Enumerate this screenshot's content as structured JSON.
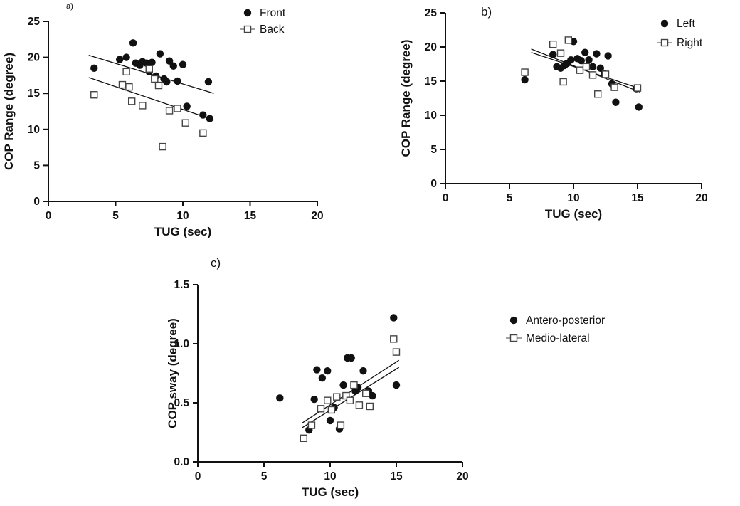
{
  "figure": {
    "background": "#ffffff",
    "ink": "#111111",
    "open_marker_fill": "#ffffff",
    "open_marker_stroke": "#444444"
  },
  "chart_data": [
    {
      "id": "a",
      "panel_label": "a)",
      "type": "scatter",
      "xlabel": "TUG (sec)",
      "ylabel": "COP Range (degree)",
      "xlim": [
        0,
        20
      ],
      "ylim": [
        0,
        25
      ],
      "xtick_values": [
        0,
        5,
        10,
        15,
        20
      ],
      "xtick_labels": [
        "0",
        "5",
        "10",
        "15",
        "20"
      ],
      "ytick_values": [
        0,
        5,
        10,
        15,
        20,
        25
      ],
      "ytick_labels": [
        "0",
        "5",
        "10",
        "15",
        "20",
        "25"
      ],
      "grid": false,
      "legend_position": "top-right",
      "series": [
        {
          "name": "Front",
          "marker": "filled-circle",
          "points": [
            [
              3.4,
              18.5
            ],
            [
              5.3,
              19.7
            ],
            [
              5.8,
              20.0
            ],
            [
              6.3,
              22.0
            ],
            [
              6.5,
              19.2
            ],
            [
              6.8,
              18.9
            ],
            [
              7.0,
              19.4
            ],
            [
              7.3,
              19.2
            ],
            [
              7.5,
              18.0
            ],
            [
              7.7,
              19.3
            ],
            [
              8.0,
              17.4
            ],
            [
              8.3,
              20.5
            ],
            [
              8.6,
              17.0
            ],
            [
              8.8,
              16.6
            ],
            [
              9.0,
              19.5
            ],
            [
              9.3,
              18.8
            ],
            [
              9.6,
              16.7
            ],
            [
              10.0,
              19.0
            ],
            [
              10.3,
              13.2
            ],
            [
              11.5,
              12.0
            ],
            [
              11.9,
              16.6
            ],
            [
              12.0,
              11.5
            ]
          ],
          "trend": {
            "x1": 3.0,
            "y1": 20.3,
            "x2": 12.3,
            "y2": 15.0
          }
        },
        {
          "name": "Back",
          "marker": "open-square",
          "points": [
            [
              3.4,
              14.8
            ],
            [
              5.5,
              16.2
            ],
            [
              5.8,
              18.0
            ],
            [
              6.0,
              15.9
            ],
            [
              6.2,
              13.9
            ],
            [
              7.0,
              13.3
            ],
            [
              7.5,
              18.4
            ],
            [
              7.9,
              17.0
            ],
            [
              8.2,
              16.1
            ],
            [
              8.5,
              7.6
            ],
            [
              9.0,
              12.6
            ],
            [
              9.6,
              12.9
            ],
            [
              10.2,
              10.9
            ],
            [
              11.5,
              9.5
            ]
          ],
          "trend": {
            "x1": 3.0,
            "y1": 17.2,
            "x2": 12.3,
            "y2": 11.3
          }
        }
      ]
    },
    {
      "id": "b",
      "panel_label": "b)",
      "type": "scatter",
      "xlabel": "TUG (sec)",
      "ylabel": "COP Range (degree)",
      "xlim": [
        0,
        20
      ],
      "ylim": [
        0,
        25
      ],
      "xtick_values": [
        0,
        5,
        10,
        15,
        20
      ],
      "xtick_labels": [
        "0",
        "5",
        "10",
        "15",
        "20"
      ],
      "ytick_values": [
        0,
        5,
        10,
        15,
        20,
        25
      ],
      "ytick_labels": [
        "0",
        "5",
        "10",
        "15",
        "20",
        "25"
      ],
      "grid": false,
      "legend_position": "top-right",
      "series": [
        {
          "name": "Left",
          "marker": "filled-circle",
          "points": [
            [
              6.2,
              15.2
            ],
            [
              8.4,
              18.9
            ],
            [
              8.7,
              17.1
            ],
            [
              9.0,
              16.9
            ],
            [
              9.3,
              17.3
            ],
            [
              9.5,
              17.6
            ],
            [
              9.8,
              18.1
            ],
            [
              10.0,
              20.8
            ],
            [
              10.3,
              18.3
            ],
            [
              10.6,
              18.0
            ],
            [
              10.9,
              19.2
            ],
            [
              11.2,
              18.1
            ],
            [
              11.5,
              17.1
            ],
            [
              11.8,
              19.0
            ],
            [
              12.1,
              16.9
            ],
            [
              12.4,
              16.1
            ],
            [
              12.7,
              18.7
            ],
            [
              13.0,
              14.6
            ],
            [
              13.3,
              11.9
            ],
            [
              14.9,
              13.9
            ],
            [
              15.1,
              11.2
            ]
          ],
          "trend": {
            "x1": 6.7,
            "y1": 19.7,
            "x2": 15.2,
            "y2": 13.4
          }
        },
        {
          "name": "Right",
          "marker": "open-square",
          "points": [
            [
              6.2,
              16.3
            ],
            [
              8.4,
              20.4
            ],
            [
              9.0,
              19.1
            ],
            [
              9.2,
              14.9
            ],
            [
              9.6,
              21.0
            ],
            [
              10.5,
              16.6
            ],
            [
              11.0,
              17.1
            ],
            [
              11.5,
              15.9
            ],
            [
              11.9,
              13.1
            ],
            [
              12.5,
              16.0
            ],
            [
              13.2,
              14.1
            ],
            [
              15.0,
              14.0
            ]
          ],
          "trend": {
            "x1": 6.7,
            "y1": 19.2,
            "x2": 15.2,
            "y2": 13.9
          }
        }
      ]
    },
    {
      "id": "c",
      "panel_label": "c)",
      "type": "scatter",
      "xlabel": "TUG (sec)",
      "ylabel": "COP sway (degree)",
      "xlim": [
        0,
        20
      ],
      "ylim": [
        0,
        1.5
      ],
      "xtick_values": [
        0,
        5,
        10,
        15,
        20
      ],
      "xtick_labels": [
        "0",
        "5",
        "10",
        "15",
        "20"
      ],
      "ytick_values": [
        0,
        0.5,
        1.0,
        1.5
      ],
      "ytick_labels": [
        "0.0",
        "0.5",
        "1.0",
        "1.5"
      ],
      "grid": false,
      "legend_position": "right",
      "series": [
        {
          "name": "Antero-posterior",
          "marker": "filled-circle",
          "points": [
            [
              6.2,
              0.54
            ],
            [
              8.4,
              0.27
            ],
            [
              8.8,
              0.53
            ],
            [
              9.0,
              0.78
            ],
            [
              9.4,
              0.71
            ],
            [
              9.8,
              0.77
            ],
            [
              10.0,
              0.35
            ],
            [
              10.3,
              0.46
            ],
            [
              10.7,
              0.28
            ],
            [
              11.0,
              0.65
            ],
            [
              11.3,
              0.88
            ],
            [
              11.6,
              0.88
            ],
            [
              11.9,
              0.6
            ],
            [
              12.1,
              0.63
            ],
            [
              12.5,
              0.77
            ],
            [
              12.9,
              0.6
            ],
            [
              13.2,
              0.56
            ],
            [
              14.8,
              1.22
            ],
            [
              15.0,
              0.65
            ]
          ],
          "trend": {
            "x1": 7.9,
            "y1": 0.33,
            "x2": 15.2,
            "y2": 0.86
          }
        },
        {
          "name": "Medio-lateral",
          "marker": "open-square",
          "points": [
            [
              8.0,
              0.2
            ],
            [
              8.6,
              0.31
            ],
            [
              9.3,
              0.45
            ],
            [
              9.8,
              0.52
            ],
            [
              10.1,
              0.44
            ],
            [
              10.5,
              0.55
            ],
            [
              10.8,
              0.31
            ],
            [
              11.2,
              0.56
            ],
            [
              11.5,
              0.52
            ],
            [
              11.8,
              0.65
            ],
            [
              12.2,
              0.48
            ],
            [
              12.7,
              0.58
            ],
            [
              13.0,
              0.47
            ],
            [
              14.8,
              1.04
            ],
            [
              15.0,
              0.93
            ]
          ],
          "trend": {
            "x1": 7.9,
            "y1": 0.29,
            "x2": 15.2,
            "y2": 0.8
          }
        }
      ]
    }
  ]
}
